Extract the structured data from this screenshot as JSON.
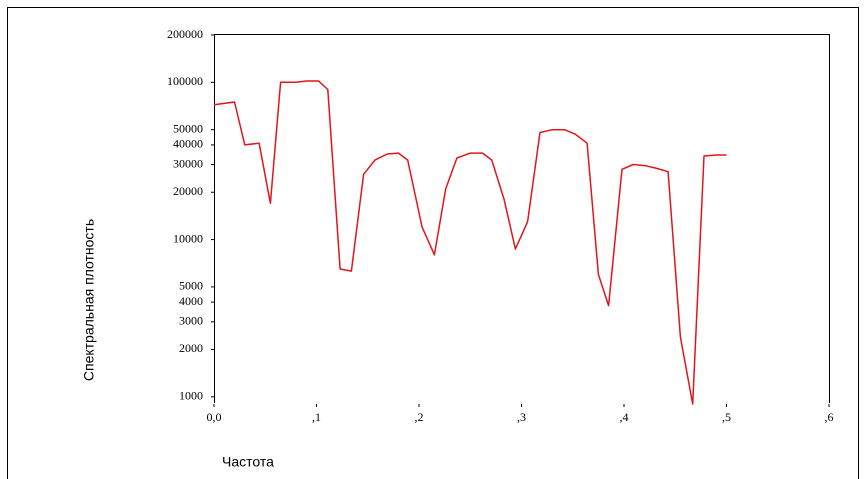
{
  "chart_data": {
    "type": "line",
    "x_label": "Частота",
    "y_label": "Спектральная плотность",
    "log_y": true,
    "color": "#e3151c",
    "x": [
      0,
      0.02,
      0.03,
      0.044,
      0.055,
      0.065,
      0.08,
      0.09,
      0.102,
      0.111,
      0.123,
      0.134,
      0.146,
      0.157,
      0.169,
      0.18,
      0.189,
      0.203,
      0.215,
      0.226,
      0.237,
      0.25,
      0.262,
      0.271,
      0.283,
      0.294,
      0.306,
      0.318,
      0.33,
      0.342,
      0.352,
      0.364,
      0.375,
      0.385,
      0.398,
      0.409,
      0.421,
      0.431,
      0.443,
      0.455,
      0.467,
      0.478,
      0.49,
      0.5
    ],
    "values": [
      72000,
      75000,
      40000,
      41000,
      17000,
      100000,
      100000,
      102000,
      102000,
      90000,
      6500,
      6300,
      26000,
      32000,
      35000,
      35500,
      32000,
      12000,
      8000,
      21000,
      33000,
      35500,
      35500,
      32000,
      18000,
      8700,
      13000,
      48000,
      50000,
      50000,
      47000,
      41000,
      6000,
      3800,
      28000,
      30000,
      29500,
      28500,
      27000,
      2400,
      900,
      34000,
      34500,
      34500
    ],
    "xlim": [
      0,
      0.6
    ],
    "xticks": [
      {
        "value": 0,
        "label": "0,0"
      },
      {
        "value": 0.1,
        "label": ",1"
      },
      {
        "value": 0.2,
        "label": ",2"
      },
      {
        "value": 0.3,
        "label": ",3"
      },
      {
        "value": 0.4,
        "label": ",4"
      },
      {
        "value": 0.5,
        "label": ",5"
      },
      {
        "value": 0.6,
        "label": ",6"
      }
    ],
    "ylim": [
      900,
      200000
    ],
    "yticks": [
      1000,
      2000,
      3000,
      4000,
      5000,
      10000,
      20000,
      30000,
      40000,
      50000,
      100000,
      200000
    ]
  }
}
